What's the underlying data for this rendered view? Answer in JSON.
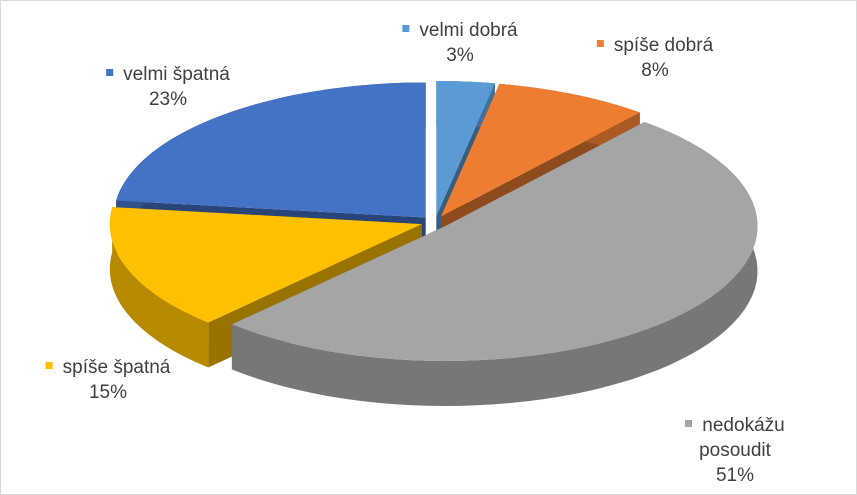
{
  "chart_data": {
    "type": "pie3d",
    "categories": [
      "velmi dobrá",
      "spíše dobrá",
      "nedokážu posoudit",
      "spíše špatná",
      "velmi špatná"
    ],
    "values": [
      3,
      8,
      51,
      15,
      23
    ],
    "value_labels": [
      "3%",
      "8%",
      "51%",
      "15%",
      "23%"
    ],
    "colors": [
      "#5b9bd5",
      "#ed7d31",
      "#a5a5a5",
      "#ffc000",
      "#4472c4"
    ]
  }
}
